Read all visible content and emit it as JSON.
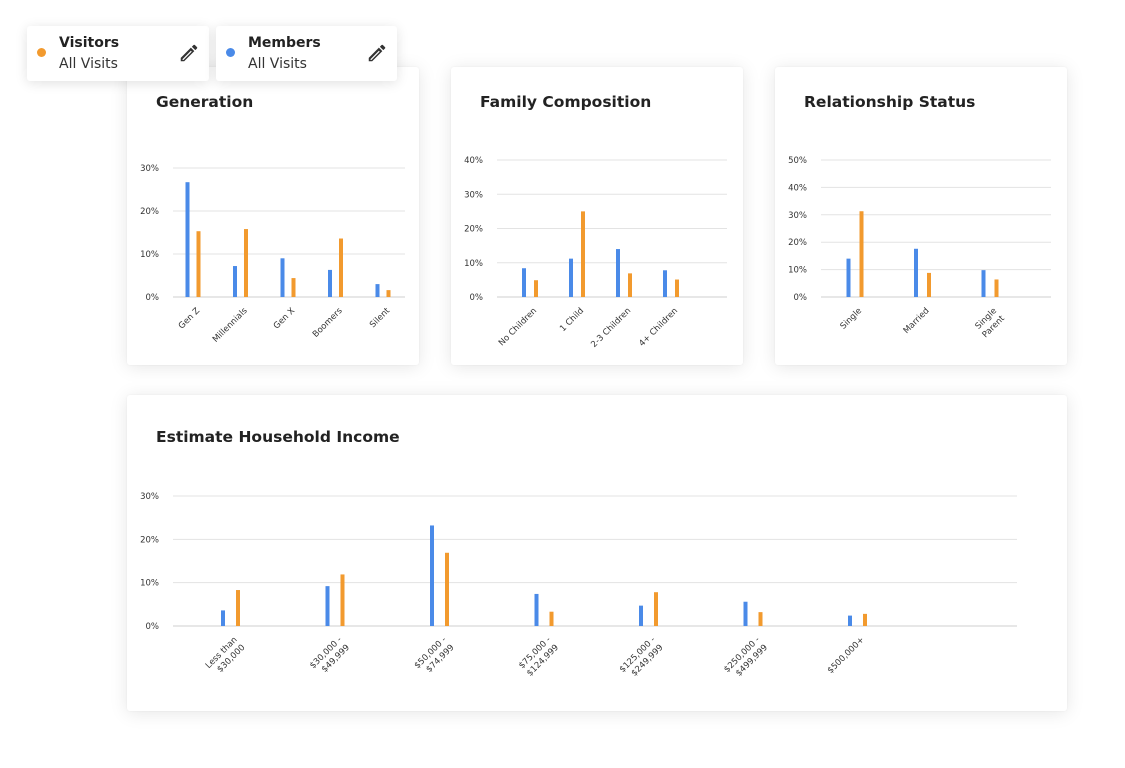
{
  "legend": [
    {
      "name": "Visitors",
      "sub": "All Visits",
      "color": "#F29A2E",
      "icon": "pencil-icon"
    },
    {
      "name": "Members",
      "sub": "All Visits",
      "color": "#4A8AE8",
      "icon": "pencil-icon"
    }
  ],
  "colors": {
    "members": "#4A8AE8",
    "visitors": "#F29A2E",
    "grid": "#e3e3e3"
  },
  "chart_data": [
    {
      "id": "generation",
      "type": "bar",
      "title": "Generation",
      "categories": [
        "Gen Z",
        "Millennials",
        "Gen X",
        "Boomers",
        "Silent"
      ],
      "ylim": [
        0,
        30
      ],
      "yticks": [
        "0%",
        "10%",
        "20%",
        "30%"
      ],
      "series": [
        {
          "name": "Members",
          "values": [
            26.7,
            7.2,
            9.0,
            6.3,
            3.0
          ]
        },
        {
          "name": "Visitors",
          "values": [
            15.3,
            15.8,
            4.4,
            13.6,
            1.6
          ]
        }
      ]
    },
    {
      "id": "family",
      "type": "bar",
      "title": "Family Composition",
      "categories": [
        "No Children",
        "1 Child",
        "2-3 Children",
        "4+ Children"
      ],
      "ylim": [
        0,
        40
      ],
      "yticks": [
        "0%",
        "10%",
        "20%",
        "30%",
        "40%"
      ],
      "series": [
        {
          "name": "Members",
          "values": [
            8.4,
            11.2,
            14.0,
            7.8
          ]
        },
        {
          "name": "Visitors",
          "values": [
            4.9,
            25.0,
            6.9,
            5.1
          ]
        }
      ]
    },
    {
      "id": "relationship",
      "type": "bar",
      "title": "Relationship Status",
      "categories": [
        "Single",
        "Married",
        "Single\nParent"
      ],
      "ylim": [
        0,
        50
      ],
      "yticks": [
        "0%",
        "10%",
        "20%",
        "30%",
        "40%",
        "50%"
      ],
      "series": [
        {
          "name": "Members",
          "values": [
            14.0,
            17.6,
            9.8
          ]
        },
        {
          "name": "Visitors",
          "values": [
            31.3,
            8.8,
            6.4
          ]
        }
      ]
    },
    {
      "id": "income",
      "type": "bar",
      "title": "Estimate Household Income",
      "categories": [
        "Less than\n$30,000",
        "$30,000 -\n$49,999",
        "$50,000 -\n$74,999",
        "$75,000 -\n$124,999",
        "$125,000 -\n$249,999",
        "$250,000 -\n$499,999",
        "$500,000+"
      ],
      "ylim": [
        0,
        30
      ],
      "yticks": [
        "0%",
        "10%",
        "20%",
        "30%"
      ],
      "series": [
        {
          "name": "Members",
          "values": [
            3.6,
            9.2,
            23.2,
            7.4,
            4.7,
            5.6,
            2.4
          ]
        },
        {
          "name": "Visitors",
          "values": [
            8.3,
            11.9,
            16.9,
            3.3,
            7.8,
            3.2,
            2.8
          ]
        }
      ]
    }
  ]
}
